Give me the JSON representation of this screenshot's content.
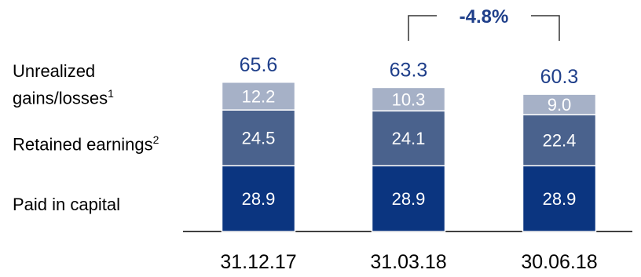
{
  "chart_data": {
    "type": "bar",
    "stacked": true,
    "categories": [
      "31.12.17",
      "31.03.18",
      "30.06.18"
    ],
    "series": [
      {
        "name": "Paid in capital",
        "values": [
          28.9,
          28.9,
          28.9
        ],
        "color": "#0b3580"
      },
      {
        "name": "Retained earnings",
        "footnote": "2",
        "values": [
          24.5,
          24.1,
          22.4
        ],
        "color": "#4a628d"
      },
      {
        "name": "Unrealized gains/losses",
        "footnote": "1",
        "values": [
          12.2,
          10.3,
          9.0
        ],
        "color": "#a6b1c7"
      }
    ],
    "totals": [
      "65.6",
      "63.3",
      "60.3"
    ],
    "segment_labels": [
      [
        "28.9",
        "24.5",
        "12.2"
      ],
      [
        "28.9",
        "24.1",
        "10.3"
      ],
      [
        "28.9",
        "22.4",
        "9.0"
      ]
    ],
    "annotation": {
      "text": "-4.8%",
      "from_category": "31.03.18",
      "to_category": "30.06.18"
    },
    "ylim": [
      0,
      65.6
    ],
    "grid": false,
    "legend": "left"
  },
  "labels": {
    "unrealized_line1": "Unrealized",
    "unrealized_line2": "gains/losses",
    "unrealized_sup": "1",
    "retained": "Retained earnings",
    "retained_sup": "2",
    "paid": "Paid in capital"
  },
  "colors": {
    "total_text": "#1f3f8a",
    "annotation_text": "#1f3f8a",
    "bracket": "#333333",
    "axis": "#000000",
    "segment_text": "#ffffff",
    "segment_border": "#ffffff"
  }
}
